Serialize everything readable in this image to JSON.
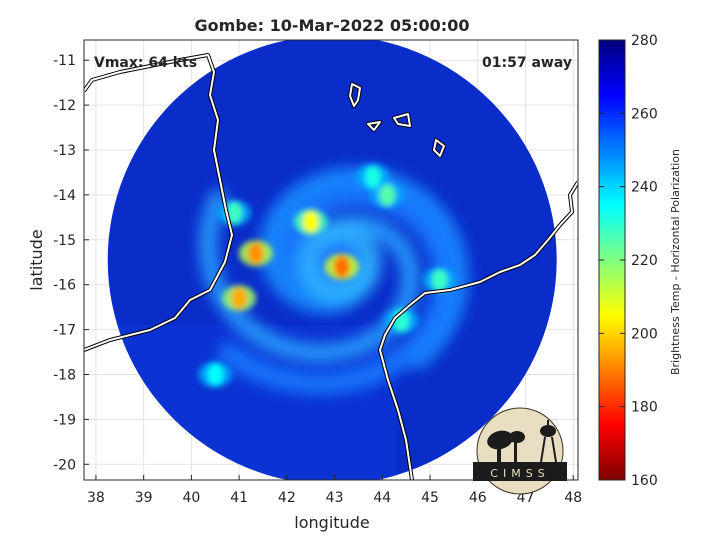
{
  "chart_data": {
    "type": "heatmap",
    "title": "Gombe: 10-Mar-2022 05:00:00",
    "xlabel": "longitude",
    "ylabel": "latitude",
    "xlim": [
      37.75,
      48.1
    ],
    "ylim": [
      -20.35,
      -10.55
    ],
    "x_ticks": [
      38,
      39,
      40,
      41,
      42,
      43,
      44,
      45,
      46,
      47,
      48
    ],
    "y_ticks": [
      -11,
      -12,
      -13,
      -14,
      -15,
      -16,
      -17,
      -18,
      -19,
      -20
    ],
    "grid": true,
    "annotations": {
      "vmax": "Vmax: 64 kts",
      "time_offset": "01:57 away"
    },
    "swath": {
      "center": [
        42.95,
        -15.45
      ],
      "radius_deg": 5.0
    },
    "storm_center": [
      43.1,
      -15.5
    ],
    "warm_spots": [
      {
        "lon": 41.35,
        "lat": -15.3,
        "temp": 192
      },
      {
        "lon": 41.0,
        "lat": -16.3,
        "temp": 195
      },
      {
        "lon": 43.15,
        "lat": -15.6,
        "temp": 188
      },
      {
        "lon": 42.5,
        "lat": -14.6,
        "temp": 205
      },
      {
        "lon": 40.9,
        "lat": -14.4,
        "temp": 228
      },
      {
        "lon": 44.1,
        "lat": -14.0,
        "temp": 225
      },
      {
        "lon": 45.2,
        "lat": -15.9,
        "temp": 228
      },
      {
        "lon": 44.4,
        "lat": -16.8,
        "temp": 230
      },
      {
        "lon": 43.8,
        "lat": -13.6,
        "temp": 232
      },
      {
        "lon": 40.5,
        "lat": -18.0,
        "temp": 235
      }
    ],
    "colorbar": {
      "label": "Brightness Temp - Horizontal Polarization",
      "range": [
        160,
        280
      ],
      "ticks": [
        280,
        260,
        240,
        220,
        200,
        180,
        160
      ],
      "colors": [
        "#00007f",
        "#0000ff",
        "#007fff",
        "#00ffff",
        "#7fff7f",
        "#ffff00",
        "#ff7f00",
        "#ff0000",
        "#7f0000"
      ]
    }
  },
  "logo": {
    "text": "CIMSS"
  }
}
